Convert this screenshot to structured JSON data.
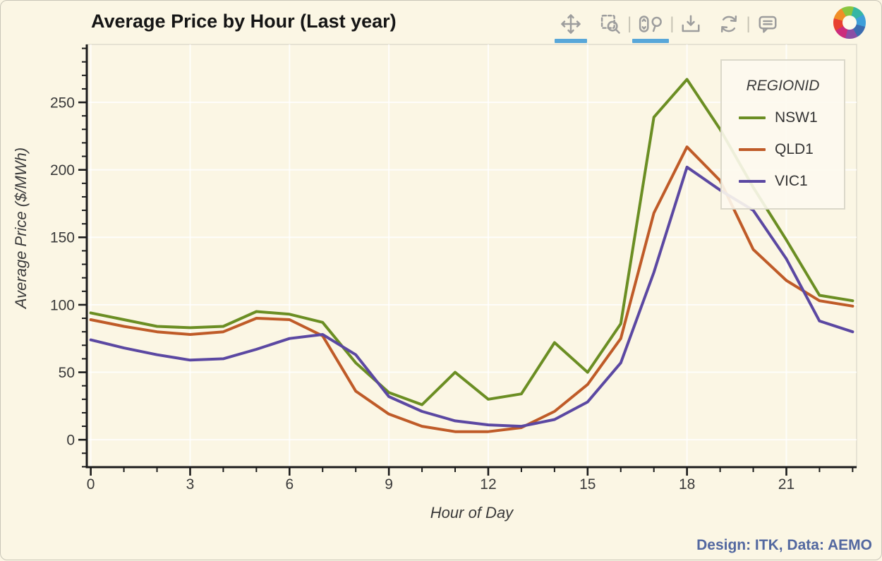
{
  "title": "Average Price by Hour (Last year)",
  "caption": "Design: ITK, Data: AEMO",
  "toolbar": {
    "tools": [
      {
        "name": "pan",
        "active": true
      },
      {
        "name": "box-zoom",
        "active": false
      },
      {
        "name": "wheel-zoom",
        "active": true
      },
      {
        "name": "save",
        "active": false
      },
      {
        "name": "reset",
        "active": false
      },
      {
        "name": "hover",
        "active": false
      }
    ],
    "accent_color": "#58a7d9",
    "icon_color": "#9d9d9d"
  },
  "legend": {
    "title": "REGIONID"
  },
  "chart_data": {
    "type": "line",
    "title": "Average Price by Hour (Last year)",
    "xlabel": "Hour of Day",
    "ylabel": "Average Price ($/MWh)",
    "x": [
      0,
      1,
      2,
      3,
      4,
      5,
      6,
      7,
      8,
      9,
      10,
      11,
      12,
      13,
      14,
      15,
      16,
      17,
      18,
      19,
      20,
      21,
      22,
      23
    ],
    "series": [
      {
        "name": "NSW1",
        "color": "#6b8e23",
        "values": [
          94,
          89,
          84,
          83,
          84,
          95,
          93,
          87,
          57,
          35,
          26,
          50,
          30,
          34,
          72,
          50,
          86,
          239,
          267,
          230,
          187,
          148,
          107,
          103
        ]
      },
      {
        "name": "QLD1",
        "color": "#bf5b28",
        "values": [
          89,
          84,
          80,
          78,
          80,
          90,
          89,
          77,
          36,
          19,
          10,
          6,
          6,
          9,
          21,
          41,
          75,
          168,
          217,
          192,
          141,
          118,
          103,
          99
        ]
      },
      {
        "name": "VIC1",
        "color": "#5b48a2",
        "values": [
          74,
          68,
          63,
          59,
          60,
          67,
          75,
          78,
          63,
          32,
          21,
          14,
          11,
          10,
          15,
          28,
          57,
          124,
          202,
          185,
          170,
          134,
          88,
          80
        ]
      }
    ],
    "xticks": [
      0,
      3,
      6,
      9,
      12,
      15,
      18,
      21
    ],
    "yticks": [
      0,
      50,
      100,
      150,
      200,
      250
    ],
    "xlim": [
      -0.12,
      23.12
    ],
    "ylim": [
      -20.3,
      292.9
    ],
    "grid": true,
    "legend_position": "top_right",
    "plot_bg": "#fbf6e4",
    "outline_color": "#e6e2d3",
    "grid_color": "rgba(255,255,255,0.8)",
    "axis_color": "#1b1b1b",
    "tick_label_color": "#3a3a3a"
  }
}
